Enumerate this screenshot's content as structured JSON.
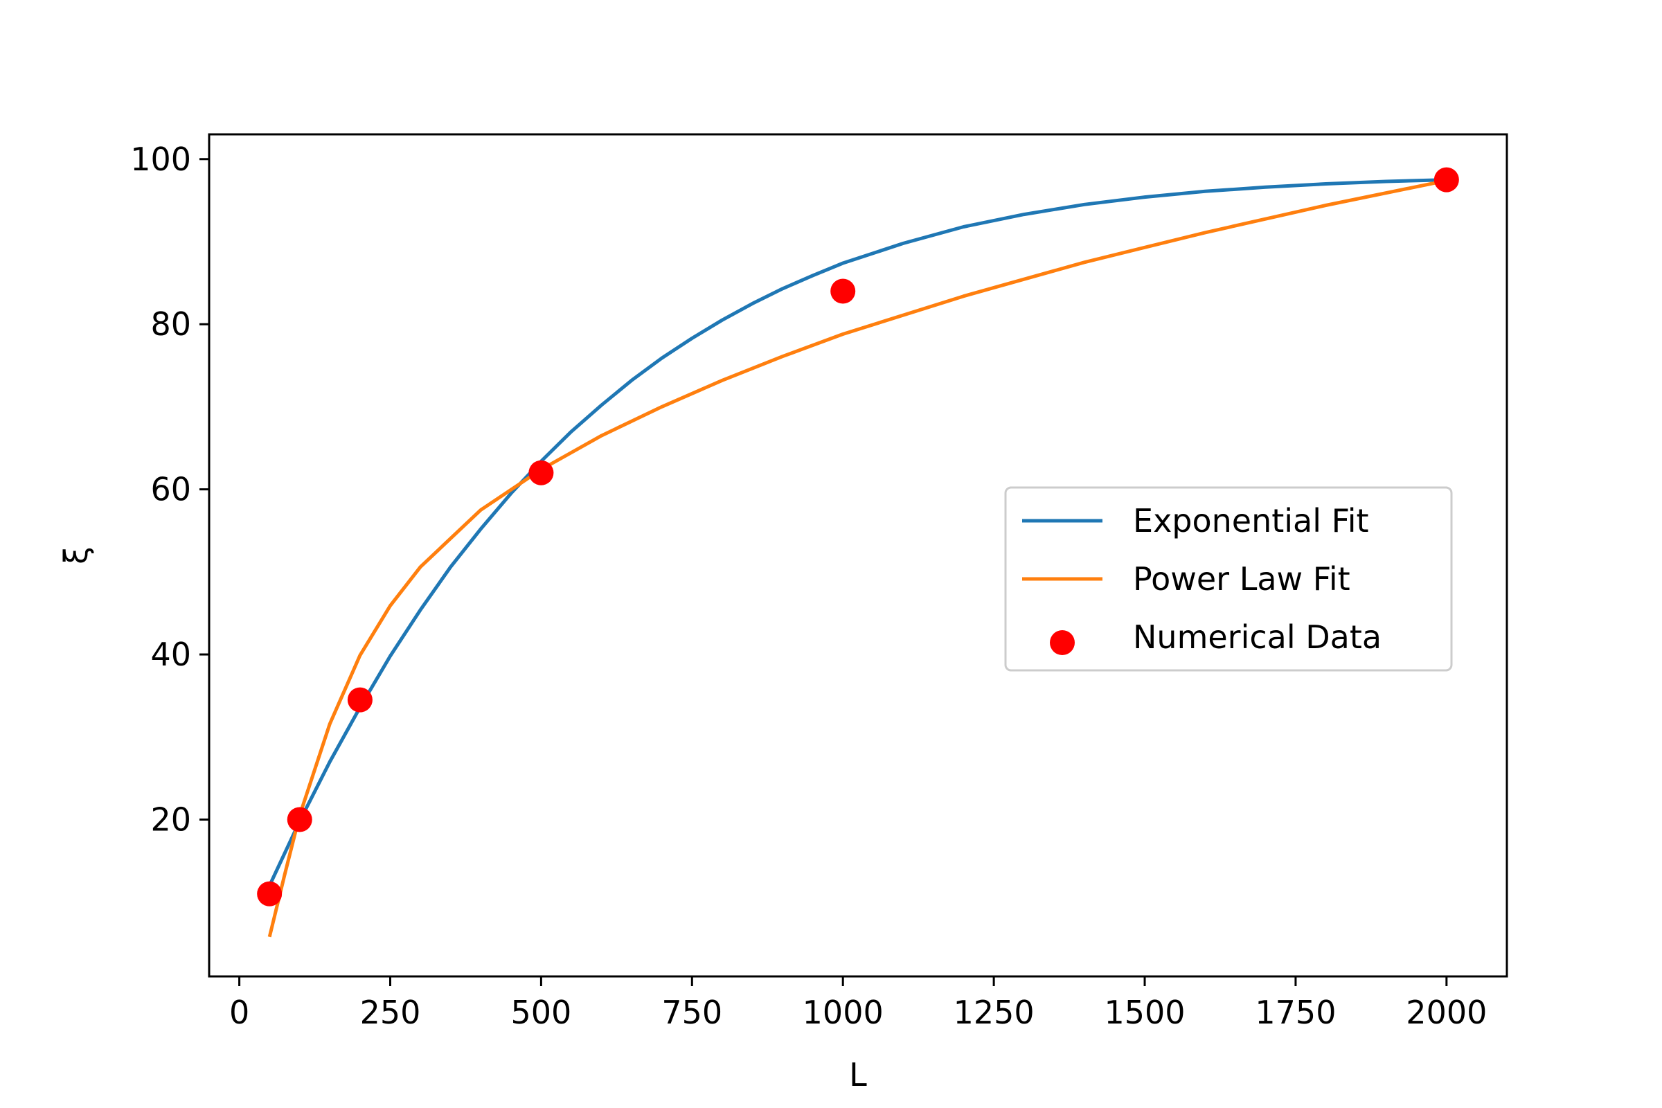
{
  "chart_data": {
    "type": "line",
    "title": "",
    "xlabel": "L",
    "ylabel": "ξ",
    "xlim": [
      -50,
      2100
    ],
    "ylim": [
      1,
      103
    ],
    "xticks": [
      0,
      250,
      500,
      750,
      1000,
      1250,
      1500,
      1750,
      2000
    ],
    "xtick_labels": [
      "0",
      "250",
      "500",
      "750",
      "1000",
      "1250",
      "1500",
      "1750",
      "2000"
    ],
    "yticks": [
      20,
      40,
      60,
      80,
      100
    ],
    "ytick_labels": [
      "20",
      "40",
      "60",
      "80",
      "100"
    ],
    "grid": false,
    "legend_position": "center-right",
    "series": [
      {
        "name": "Exponential Fit",
        "kind": "line",
        "color": "#1f77b4",
        "x": [
          50,
          100,
          150,
          200,
          250,
          300,
          350,
          400,
          450,
          500,
          550,
          600,
          650,
          700,
          750,
          800,
          850,
          900,
          950,
          1000,
          1100,
          1200,
          1300,
          1400,
          1500,
          1600,
          1700,
          1800,
          1900,
          2000
        ],
        "y": [
          12.0,
          19.8,
          27.0,
          33.6,
          39.8,
          45.4,
          50.6,
          55.2,
          59.5,
          63.4,
          67.0,
          70.2,
          73.2,
          75.9,
          78.3,
          80.5,
          82.5,
          84.3,
          85.9,
          87.4,
          89.8,
          91.8,
          93.3,
          94.5,
          95.4,
          96.1,
          96.6,
          97.0,
          97.3,
          97.5
        ]
      },
      {
        "name": "Power Law Fit",
        "kind": "line",
        "color": "#ff7f0e",
        "x": [
          50,
          75,
          100,
          150,
          200,
          250,
          300,
          400,
          500,
          600,
          700,
          800,
          900,
          1000,
          1200,
          1400,
          1600,
          1800,
          2000
        ],
        "y": [
          5.8,
          13.3,
          20.5,
          31.6,
          39.9,
          45.9,
          50.6,
          57.5,
          62.4,
          66.5,
          70.0,
          73.2,
          76.1,
          78.8,
          83.4,
          87.5,
          91.1,
          94.4,
          97.4
        ]
      },
      {
        "name": "Numerical Data",
        "kind": "scatter",
        "color": "#ff0000",
        "x": [
          50,
          100,
          200,
          500,
          1000,
          2000
        ],
        "y": [
          11,
          20,
          34.5,
          62,
          84,
          97.5
        ]
      }
    ]
  }
}
